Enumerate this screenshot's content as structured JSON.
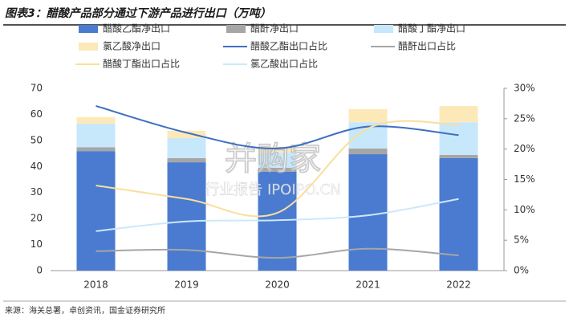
{
  "chart_data": {
    "type": "bar-line",
    "title": "图表3：醋酸产品部分通过下游产品进行出口（万吨）",
    "source": "来源：海关总署，卓创资讯，国金证券研究所",
    "watermark": [
      "并购家",
      "行业报告 IPOIPO.CN"
    ],
    "categories": [
      "2018",
      "2019",
      "2020",
      "2021",
      "2022"
    ],
    "series": [
      {
        "name": "醋酸乙酯净出口",
        "color": "#4a7bd0",
        "kind": "bar",
        "values": [
          45.9,
          41.6,
          38,
          44.7,
          43.2
        ]
      },
      {
        "name": "醋酐净出口",
        "color": "#a6a6a6",
        "kind": "bar",
        "values": [
          1.5,
          1.6,
          1.5,
          2.2,
          1.2
        ]
      },
      {
        "name": "醋酸丁酯净出口",
        "color": "#c7e7fb",
        "kind": "bar",
        "values": [
          9,
          7.7,
          5.8,
          10.1,
          12.6
        ]
      },
      {
        "name": "氯乙酸净出口",
        "color": "#fde9b8",
        "kind": "bar",
        "values": [
          2.5,
          2.8,
          2.2,
          5,
          6.2
        ]
      },
      {
        "name": "醋酸乙酯出口占比",
        "color": "#3f6fbf",
        "kind": "line",
        "axis": "y2",
        "values": [
          27.1,
          22.7,
          20.1,
          23.7,
          22.3
        ]
      },
      {
        "name": "醋酐出口占比",
        "color": "#a6a6a6",
        "kind": "line",
        "axis": "y2",
        "values": [
          3.2,
          3.4,
          2.1,
          3.6,
          2.5
        ]
      },
      {
        "name": "醋酸丁酯出口占比",
        "color": "#f8df9c",
        "kind": "line",
        "axis": "y2",
        "values": [
          14,
          11.8,
          9.5,
          23.4,
          24
        ]
      },
      {
        "name": "氯乙酸出口占比",
        "color": "#cbe9fb",
        "kind": "line",
        "axis": "y2",
        "values": [
          6.5,
          8.1,
          8.3,
          9.1,
          11.8
        ]
      }
    ],
    "ylim": [
      0,
      70
    ],
    "yticks": [
      0,
      10,
      20,
      30,
      40,
      50,
      60,
      70
    ],
    "y2lim": [
      0,
      30
    ],
    "y2ticks": [
      {
        "value": 0,
        "label": "0%"
      },
      {
        "value": 5,
        "label": "5%"
      },
      {
        "value": 10,
        "label": "10%"
      },
      {
        "value": 15,
        "label": "15%"
      },
      {
        "value": 20,
        "label": "20%"
      },
      {
        "value": 25,
        "label": "25%"
      },
      {
        "value": 30,
        "label": "30%"
      }
    ],
    "legend": "top"
  }
}
